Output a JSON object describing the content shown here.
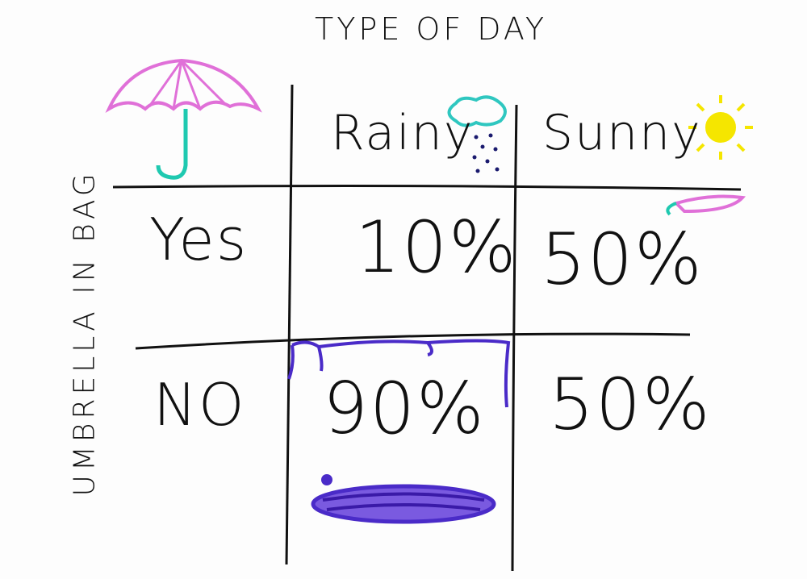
{
  "title": "TYPE OF DAY",
  "row_axis_label": "UMBRELLA IN BAG",
  "columns": [
    "Rainy",
    "Sunny"
  ],
  "rows": [
    {
      "label": "Yes",
      "values": [
        "10%",
        "50%"
      ]
    },
    {
      "label": "NO",
      "values": [
        "90%",
        "50%"
      ]
    }
  ],
  "colors": {
    "ink": "#111111",
    "umbrella": "#e070d8",
    "handle": "#1fc9b0",
    "puddle": "#4a2bc8",
    "sun": "#f5e600",
    "cloud": "#2fc7c0",
    "rain": "#1a1a6e"
  }
}
